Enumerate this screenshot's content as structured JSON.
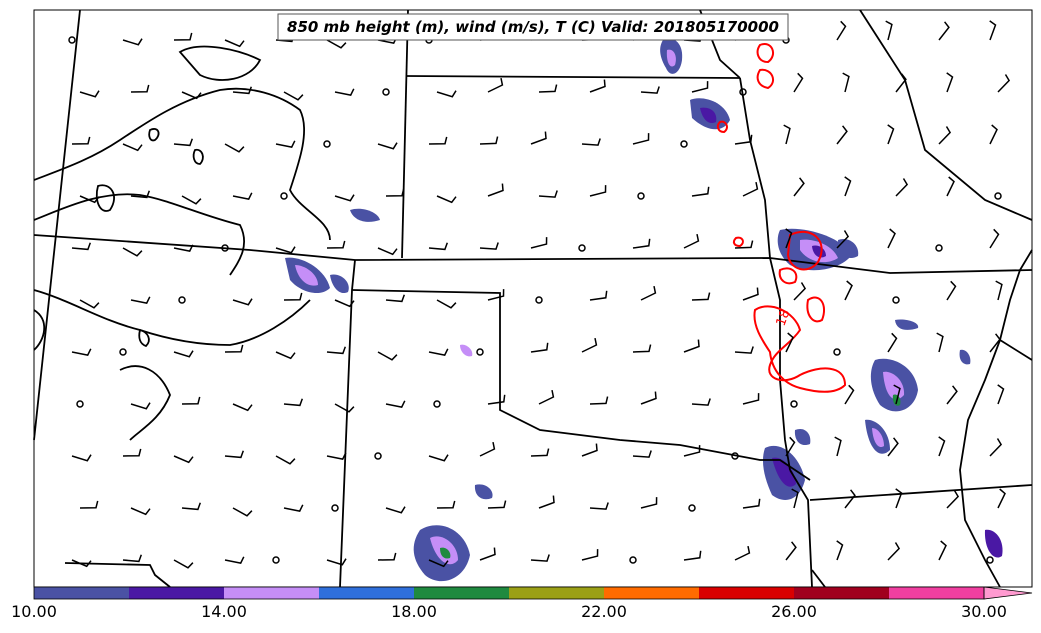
{
  "title": "850 mb height (m), wind (m/s), T (C) Valid: 201805170000",
  "contour_labels": {
    "temp": "18"
  },
  "colorbar": {
    "tick_labels": [
      "10.00",
      "14.00",
      "18.00",
      "22.00",
      "26.00",
      "30.00"
    ],
    "colors": [
      "#4a52a4",
      "#4a18a4",
      "#c58ef7",
      "#2f6fdb",
      "#1f8a3f",
      "#9ba016",
      "#ff6b00",
      "#d90000",
      "#a0001e",
      "#f03fa0",
      "#ff9ad0"
    ]
  },
  "colors": {
    "state_lines": "#000000",
    "temp_contour": "#ff0000",
    "height_contour": "#000000"
  }
}
